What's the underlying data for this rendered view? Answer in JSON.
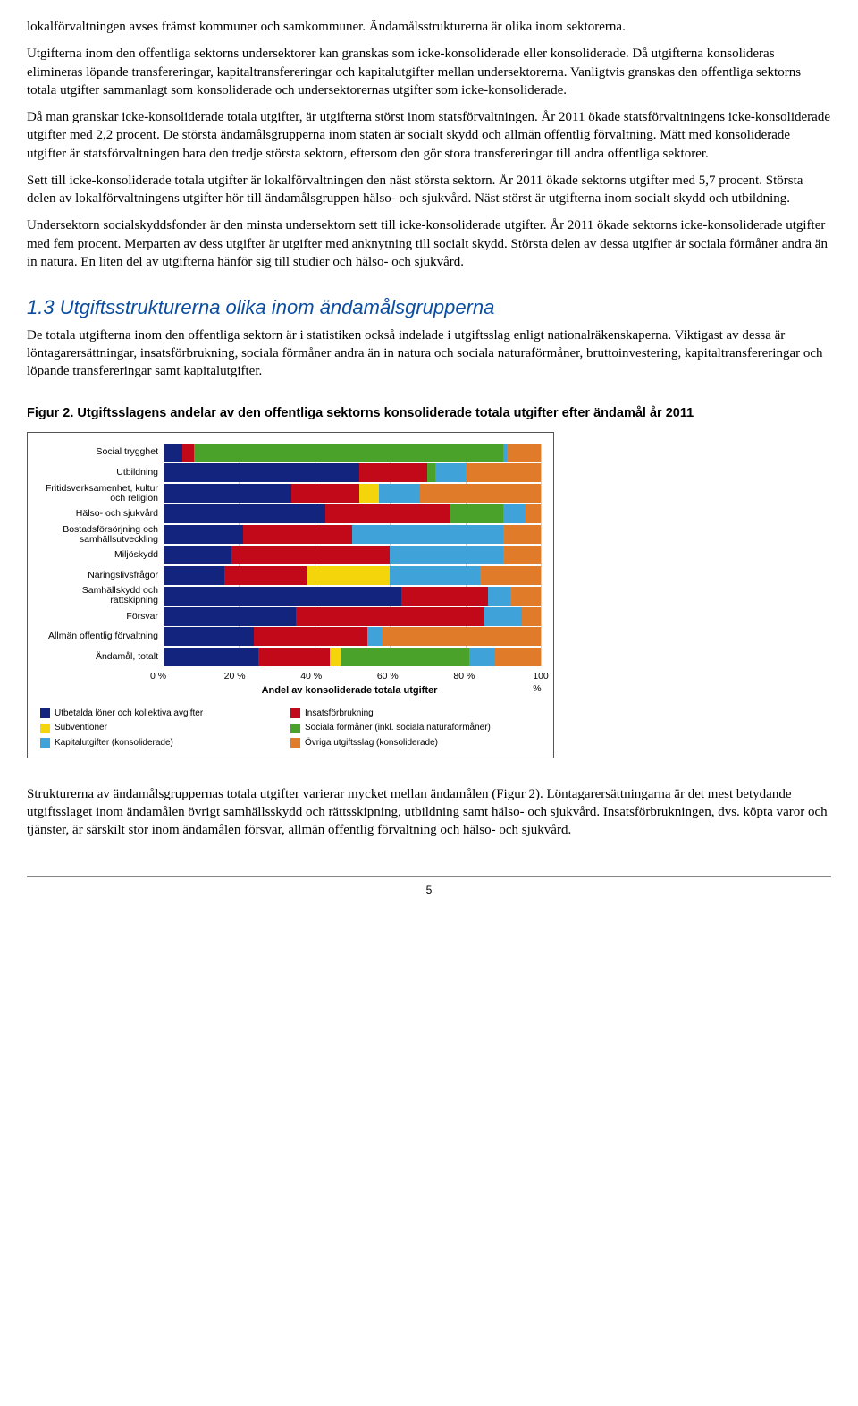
{
  "paragraphs": {
    "p1": "lokalförvaltningen avses främst kommuner och samkommuner. Ändamålsstrukturerna är olika inom sektorerna.",
    "p2": "Utgifterna inom den offentliga sektorns undersektorer kan granskas som icke-konsoliderade eller konsoliderade. Då utgifterna konsolideras elimineras löpande transfereringar, kapitaltransfereringar och kapitalutgifter mellan undersektorerna. Vanligtvis granskas den offentliga sektorns totala utgifter sammanlagt som konsoliderade och undersektorernas utgifter som icke-konsoliderade.",
    "p3": "Då man granskar icke-konsoliderade totala utgifter, är utgifterna störst inom statsförvaltningen. År 2011 ökade statsförvaltningens icke-konsoliderade utgifter med 2,2 procent. De största ändamålsgrupperna inom staten är socialt skydd och allmän offentlig förvaltning. Mätt med konsoliderade utgifter är statsförvaltningen bara den tredje största sektorn, eftersom den gör stora transfereringar till andra offentliga sektorer.",
    "p4": "Sett till icke-konsoliderade totala utgifter är lokalförvaltningen den näst största sektorn. År 2011 ökade sektorns utgifter med 5,7 procent. Största delen av lokalförvaltningens utgifter hör till ändamålsgruppen hälso- och sjukvård. Näst störst är utgifterna inom socialt skydd och utbildning.",
    "p5": "Undersektorn socialskyddsfonder är den minsta undersektorn sett till icke-konsoliderade utgifter. År 2011 ökade sektorns icke-konsoliderade utgifter med fem procent. Merparten av dess utgifter är utgifter med anknytning till socialt skydd. Största delen av dessa utgifter är sociala förmåner andra än in natura. En liten del av utgifterna hänför sig till studier och hälso- och sjukvård.",
    "p6": "De totala utgifterna inom den offentliga sektorn är i statistiken också indelade i utgiftsslag enligt nationalräkenskaperna. Viktigast av dessa är löntagarersättningar, insatsförbrukning, sociala förmåner andra än in natura och sociala naturaförmåner, bruttoinvestering, kapitaltransfereringar och löpande transfereringar samt kapitalutgifter.",
    "p7": "Strukturerna av ändamålsgruppernas totala utgifter varierar mycket mellan ändamålen (Figur 2). Löntagarersättningarna är det mest betydande utgiftsslaget inom ändamålen övrigt samhällsskydd och rättsskipning, utbildning samt hälso- och sjukvård. Insatsförbrukningen, dvs. köpta varor och tjänster, är särskilt stor inom ändamålen försvar, allmän offentlig förvaltning och hälso- och sjukvård."
  },
  "section_title": "1.3 Utgiftsstrukturerna olika inom ändamålsgrupperna",
  "figure_title": "Figur 2. Utgiftsslagens andelar av den offentliga sektorns konsoliderade totala utgifter efter ändamål år 2011",
  "chart": {
    "type": "stacked-bar-horizontal",
    "x_axis_title": "Andel av konsoliderade totala utgifter",
    "x_ticks": [
      "0 %",
      "20 %",
      "40 %",
      "60 %",
      "80 %",
      "100 %"
    ],
    "x_tick_positions": [
      0,
      20,
      40,
      60,
      80,
      100
    ],
    "grid_color": "#cccccc",
    "series_colors": {
      "wages": "#12247d",
      "subsidies": "#f4d50c",
      "capital": "#3fa3da",
      "consumption": "#c1091a",
      "social": "#4aa22a",
      "other": "#e07b2a"
    },
    "categories": [
      {
        "label": "Social trygghet",
        "values": {
          "wages": 5,
          "consumption": 3,
          "subsidies": 0,
          "social": 82,
          "capital": 1,
          "other": 9
        }
      },
      {
        "label": "Utbildning",
        "values": {
          "wages": 52,
          "consumption": 18,
          "subsidies": 0,
          "social": 2,
          "capital": 8,
          "other": 20
        }
      },
      {
        "label": "Fritidsverksamenhet, kultur och religion",
        "values": {
          "wages": 34,
          "consumption": 18,
          "subsidies": 5,
          "social": 0,
          "capital": 11,
          "other": 32
        }
      },
      {
        "label": "Hälso- och sjukvård",
        "values": {
          "wages": 43,
          "consumption": 33,
          "subsidies": 0,
          "social": 14,
          "capital": 6,
          "other": 4
        }
      },
      {
        "label": "Bostadsförsörjning och samhällsutveckling",
        "values": {
          "wages": 21,
          "consumption": 29,
          "subsidies": 0,
          "social": 0,
          "capital": 40,
          "other": 10
        }
      },
      {
        "label": "Miljöskydd",
        "values": {
          "wages": 18,
          "consumption": 42,
          "subsidies": 0,
          "social": 0,
          "capital": 30,
          "other": 10
        }
      },
      {
        "label": "Näringslivsfrågor",
        "values": {
          "wages": 16,
          "consumption": 22,
          "subsidies": 22,
          "social": 0,
          "capital": 24,
          "other": 16
        }
      },
      {
        "label": "Samhällskydd och rättskipning",
        "values": {
          "wages": 63,
          "consumption": 23,
          "subsidies": 0,
          "social": 0,
          "capital": 6,
          "other": 8
        }
      },
      {
        "label": "Försvar",
        "values": {
          "wages": 35,
          "consumption": 50,
          "subsidies": 0,
          "social": 0,
          "capital": 10,
          "other": 5
        }
      },
      {
        "label": "Allmän offentlig förvaltning",
        "values": {
          "wages": 24,
          "consumption": 30,
          "subsidies": 0,
          "social": 0,
          "capital": 4,
          "other": 42
        }
      },
      {
        "label": "Ändamål, totalt",
        "values": {
          "wages": 25,
          "consumption": 19,
          "subsidies": 3,
          "social": 34,
          "capital": 7,
          "other": 12
        }
      }
    ],
    "legend": [
      {
        "key": "wages",
        "label": "Utbetalda löner och kollektiva avgifter"
      },
      {
        "key": "consumption",
        "label": "Insatsförbrukning"
      },
      {
        "key": "subsidies",
        "label": "Subventioner"
      },
      {
        "key": "social",
        "label": "Sociala förmåner (inkl. sociala naturaförmåner)"
      },
      {
        "key": "capital",
        "label": "Kapitalutgifter (konsoliderade)"
      },
      {
        "key": "other",
        "label": "Övriga utgiftsslag (konsoliderade)"
      }
    ]
  },
  "page_number": "5"
}
